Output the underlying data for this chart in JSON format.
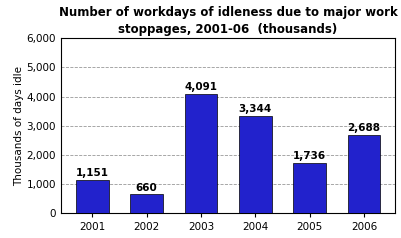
{
  "categories": [
    "2001",
    "2002",
    "2003",
    "2004",
    "2005",
    "2006"
  ],
  "values": [
    1151,
    660,
    4091,
    3344,
    1736,
    2688
  ],
  "labels": [
    "1,151",
    "660",
    "4,091",
    "3,344",
    "1,736",
    "2,688"
  ],
  "bar_color": "#2222cc",
  "bar_edge_color": "#000000",
  "title_line1": "Number of workdays of idleness due to major work",
  "title_line2": "stoppages, 2001-06  (thousands)",
  "ylabel": "Thousands of days idle",
  "ylim": [
    0,
    6000
  ],
  "yticks": [
    0,
    1000,
    2000,
    3000,
    4000,
    5000,
    6000
  ],
  "ytick_labels": [
    "0",
    "1,000",
    "2,000",
    "3,000",
    "4,000",
    "5,000",
    "6,000"
  ],
  "background_color": "#ffffff",
  "grid_color": "#999999",
  "title_fontsize": 8.5,
  "ylabel_fontsize": 7.5,
  "tick_fontsize": 7.5,
  "bar_label_fontsize": 7.5,
  "border_color": "#000000",
  "fig_width": 4.01,
  "fig_height": 2.38,
  "dpi": 100
}
